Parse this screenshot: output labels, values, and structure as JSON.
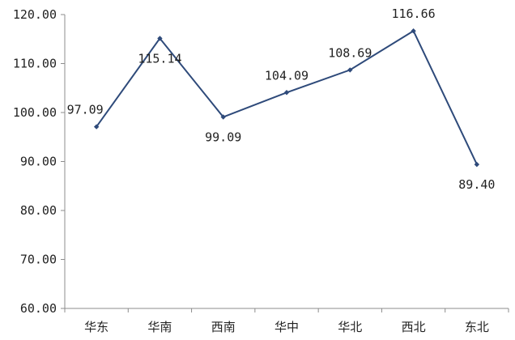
{
  "chart_data": {
    "type": "line",
    "title": "",
    "xlabel": "",
    "ylabel": "",
    "categories": [
      "华东",
      "华南",
      "西南",
      "华中",
      "华北",
      "西北",
      "东北"
    ],
    "series": [
      {
        "values": [
          97.09,
          115.14,
          99.09,
          104.09,
          108.69,
          116.66,
          89.4
        ]
      }
    ],
    "data_labels": [
      "97.09",
      "115.14",
      "99.09",
      "104.09",
      "108.69",
      "116.66",
      "89.40"
    ],
    "yticks": [
      "60.00",
      "70.00",
      "80.00",
      "90.00",
      "100.00",
      "110.00",
      "120.00"
    ],
    "ylim": [
      60,
      120
    ],
    "grid": false,
    "legend": "none",
    "line_color": "#2e4a7a",
    "marker": "diamond"
  }
}
